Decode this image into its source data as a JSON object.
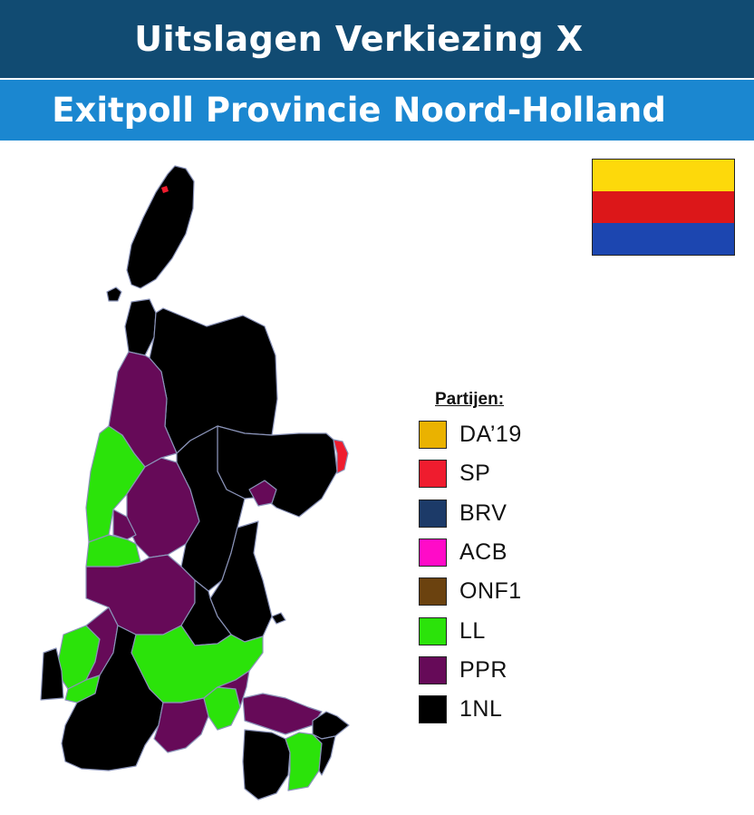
{
  "header": {
    "title": "Uitslagen Verkiezing X",
    "subtitle": "Exitpoll Provincie Noord-Holland"
  },
  "flag": {
    "stripes": [
      "#fdd90b",
      "#dc1719",
      "#1c46b0"
    ]
  },
  "legend": {
    "title": "Partijen",
    "title_suffix": ":",
    "parties": [
      {
        "name": "DA’19",
        "color": "#eab200"
      },
      {
        "name": "SP",
        "color": "#ef1c2e"
      },
      {
        "name": "BRV",
        "color": "#1c3a68"
      },
      {
        "name": "ACB",
        "color": "#ff0bc8"
      },
      {
        "name": "ONF1",
        "color": "#6b420f"
      },
      {
        "name": "LL",
        "color": "#2be30a"
      },
      {
        "name": "PPR",
        "color": "#660a58"
      },
      {
        "name": "1NL",
        "color": "#000000"
      }
    ]
  },
  "map": {
    "colors": {
      "black": "#000000",
      "purple": "#660a58",
      "green": "#2be30a",
      "red": "#ef1c2e",
      "border": "#8a93b8"
    }
  }
}
